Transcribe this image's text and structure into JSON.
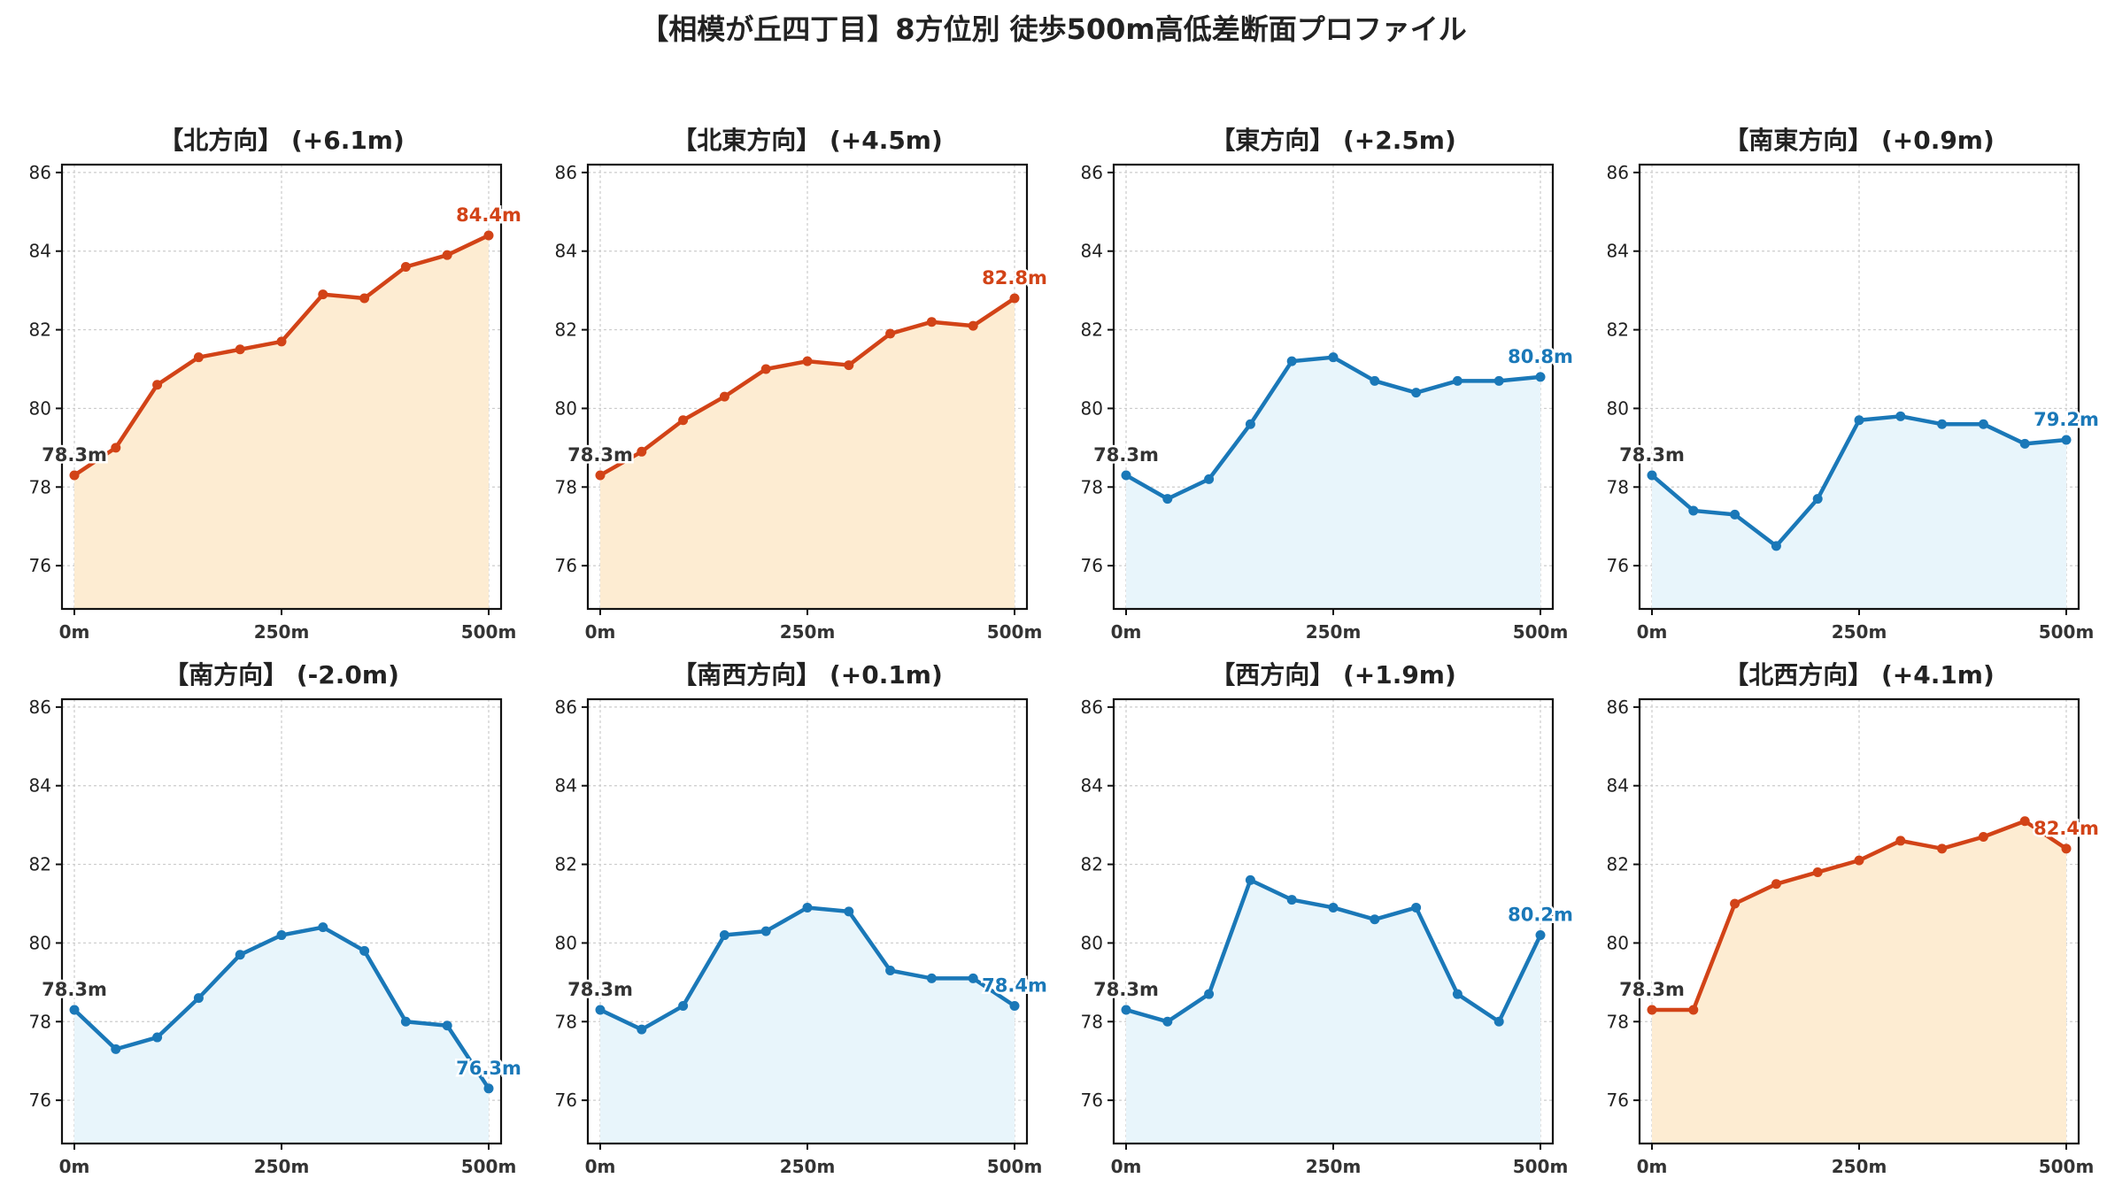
{
  "title": "【相模が丘四丁目】8方位別 徒歩500m高低差断面プロファイル",
  "colors": {
    "up_line": "#d24317",
    "up_fill": "#fdecd2",
    "down_line": "#1a78b8",
    "down_fill": "#e8f5fb",
    "start_label": "#333333",
    "grid": "#cccccc"
  },
  "chart_data": [
    {
      "type": "area",
      "title": "【北方向】 (+6.1m)",
      "trend": "up",
      "x": [
        0,
        50,
        100,
        150,
        200,
        250,
        300,
        350,
        400,
        450,
        500
      ],
      "y": [
        78.3,
        79.0,
        80.6,
        81.3,
        81.5,
        81.7,
        82.9,
        82.8,
        83.6,
        83.9,
        84.4
      ],
      "start_label": "78.3m",
      "end_label": "84.4m",
      "xtick_labels": [
        "0m",
        "250m",
        "500m"
      ],
      "xticks": [
        0,
        250,
        500
      ],
      "yticks": [
        76,
        78,
        80,
        82,
        84,
        86
      ],
      "ylim": [
        74.9,
        86.2
      ],
      "grid": true
    },
    {
      "type": "area",
      "title": "【北東方向】 (+4.5m)",
      "trend": "up",
      "x": [
        0,
        50,
        100,
        150,
        200,
        250,
        300,
        350,
        400,
        450,
        500
      ],
      "y": [
        78.3,
        78.9,
        79.7,
        80.3,
        81.0,
        81.2,
        81.1,
        81.9,
        82.2,
        82.1,
        82.8
      ],
      "start_label": "78.3m",
      "end_label": "82.8m",
      "xtick_labels": [
        "0m",
        "250m",
        "500m"
      ],
      "xticks": [
        0,
        250,
        500
      ],
      "yticks": [
        76,
        78,
        80,
        82,
        84,
        86
      ],
      "ylim": [
        74.9,
        86.2
      ],
      "grid": true
    },
    {
      "type": "area",
      "title": "【東方向】 (+2.5m)",
      "trend": "down",
      "x": [
        0,
        50,
        100,
        150,
        200,
        250,
        300,
        350,
        400,
        450,
        500
      ],
      "y": [
        78.3,
        77.7,
        78.2,
        79.6,
        81.2,
        81.3,
        80.7,
        80.4,
        80.7,
        80.7,
        80.8
      ],
      "start_label": "78.3m",
      "end_label": "80.8m",
      "xtick_labels": [
        "0m",
        "250m",
        "500m"
      ],
      "xticks": [
        0,
        250,
        500
      ],
      "yticks": [
        76,
        78,
        80,
        82,
        84,
        86
      ],
      "ylim": [
        74.9,
        86.2
      ],
      "grid": true
    },
    {
      "type": "area",
      "title": "【南東方向】 (+0.9m)",
      "trend": "down",
      "x": [
        0,
        50,
        100,
        150,
        200,
        250,
        300,
        350,
        400,
        450,
        500
      ],
      "y": [
        78.3,
        77.4,
        77.3,
        76.5,
        77.7,
        79.7,
        79.8,
        79.6,
        79.6,
        79.1,
        79.2
      ],
      "start_label": "78.3m",
      "end_label": "79.2m",
      "xtick_labels": [
        "0m",
        "250m",
        "500m"
      ],
      "xticks": [
        0,
        250,
        500
      ],
      "yticks": [
        76,
        78,
        80,
        82,
        84,
        86
      ],
      "ylim": [
        74.9,
        86.2
      ],
      "grid": true
    },
    {
      "type": "area",
      "title": "【南方向】 (-2.0m)",
      "trend": "down",
      "x": [
        0,
        50,
        100,
        150,
        200,
        250,
        300,
        350,
        400,
        450,
        500
      ],
      "y": [
        78.3,
        77.3,
        77.6,
        78.6,
        79.7,
        80.2,
        80.4,
        79.8,
        78.0,
        77.9,
        76.3
      ],
      "start_label": "78.3m",
      "end_label": "76.3m",
      "xtick_labels": [
        "0m",
        "250m",
        "500m"
      ],
      "xticks": [
        0,
        250,
        500
      ],
      "yticks": [
        76,
        78,
        80,
        82,
        84,
        86
      ],
      "ylim": [
        74.9,
        86.2
      ],
      "grid": true
    },
    {
      "type": "area",
      "title": "【南西方向】 (+0.1m)",
      "trend": "down",
      "x": [
        0,
        50,
        100,
        150,
        200,
        250,
        300,
        350,
        400,
        450,
        500
      ],
      "y": [
        78.3,
        77.8,
        78.4,
        80.2,
        80.3,
        80.9,
        80.8,
        79.3,
        79.1,
        79.1,
        78.4
      ],
      "start_label": "78.3m",
      "end_label": "78.4m",
      "xtick_labels": [
        "0m",
        "250m",
        "500m"
      ],
      "xticks": [
        0,
        250,
        500
      ],
      "yticks": [
        76,
        78,
        80,
        82,
        84,
        86
      ],
      "ylim": [
        74.9,
        86.2
      ],
      "grid": true
    },
    {
      "type": "area",
      "title": "【西方向】 (+1.9m)",
      "trend": "down",
      "x": [
        0,
        50,
        100,
        150,
        200,
        250,
        300,
        350,
        400,
        450,
        500
      ],
      "y": [
        78.3,
        78.0,
        78.7,
        81.6,
        81.1,
        80.9,
        80.6,
        80.9,
        78.7,
        78.0,
        80.2
      ],
      "start_label": "78.3m",
      "end_label": "80.2m",
      "xtick_labels": [
        "0m",
        "250m",
        "500m"
      ],
      "xticks": [
        0,
        250,
        500
      ],
      "yticks": [
        76,
        78,
        80,
        82,
        84,
        86
      ],
      "ylim": [
        74.9,
        86.2
      ],
      "grid": true
    },
    {
      "type": "area",
      "title": "【北西方向】 (+4.1m)",
      "trend": "up",
      "x": [
        0,
        50,
        100,
        150,
        200,
        250,
        300,
        350,
        400,
        450,
        500
      ],
      "y": [
        78.3,
        78.3,
        81.0,
        81.5,
        81.8,
        82.1,
        82.6,
        82.4,
        82.7,
        83.1,
        82.4
      ],
      "start_label": "78.3m",
      "end_label": "82.4m",
      "xtick_labels": [
        "0m",
        "250m",
        "500m"
      ],
      "xticks": [
        0,
        250,
        500
      ],
      "yticks": [
        76,
        78,
        80,
        82,
        84,
        86
      ],
      "ylim": [
        74.9,
        86.2
      ],
      "grid": true
    }
  ]
}
